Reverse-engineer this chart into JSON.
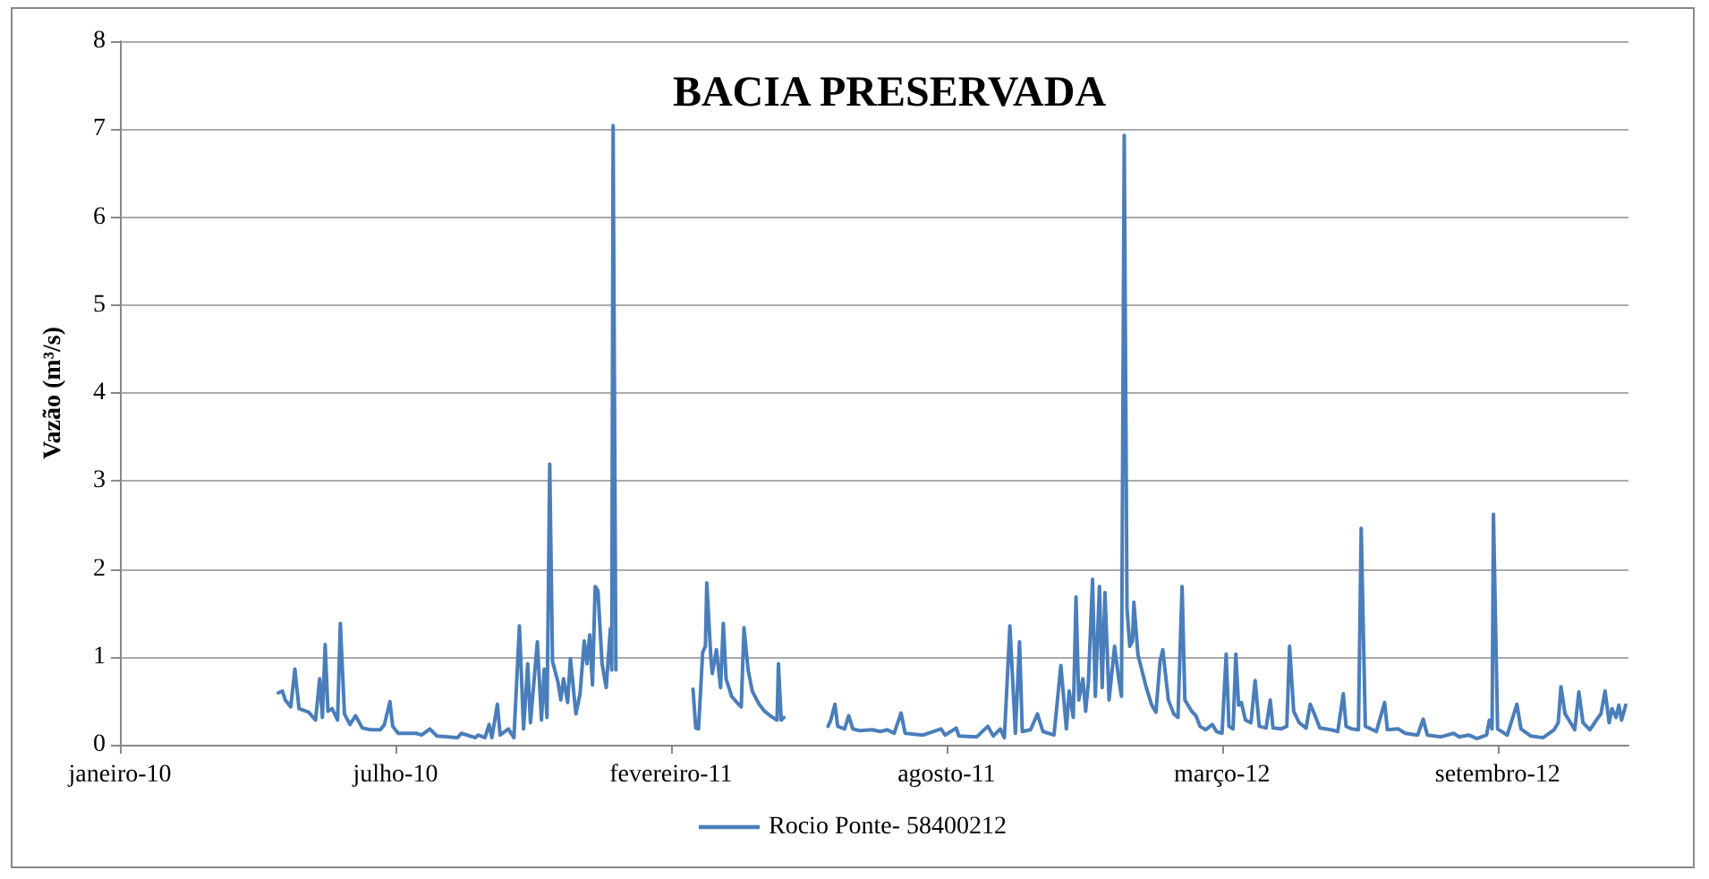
{
  "chart_data": {
    "type": "line",
    "title": "BACIA PRESERVADA",
    "ylabel": "Vazão (m³/s)",
    "xlim": [
      "2010-01-01",
      "2012-12-31"
    ],
    "xticks": [
      {
        "value": "2010-01-01",
        "label": "janeiro-10"
      },
      {
        "value": "2010-07-20",
        "label": "julho-10"
      },
      {
        "value": "2011-02-05",
        "label": "fevereiro-11"
      },
      {
        "value": "2011-08-24",
        "label": "agosto-11"
      },
      {
        "value": "2012-03-11",
        "label": "março-12"
      },
      {
        "value": "2012-09-27",
        "label": "setembro-12"
      }
    ],
    "ylim": [
      0,
      8
    ],
    "yticks": [
      0,
      1,
      2,
      3,
      4,
      5,
      6,
      7,
      8
    ],
    "grid": "y",
    "legend": "bottom",
    "marker": "none",
    "line_style": "solid",
    "series": [
      {
        "name": "Rocio Ponte- 58400212",
        "color": "#4a7ebb",
        "x": [
          "2010-04-26",
          "2010-04-29",
          "2010-05-01",
          "2010-05-05",
          "2010-05-08",
          "2010-05-11",
          "2010-05-18",
          "2010-05-23",
          "2010-05-26",
          "2010-05-28",
          "2010-05-30",
          "2010-06-01",
          "2010-06-04",
          "2010-06-08",
          "2010-06-10",
          "2010-06-13",
          "2010-06-17",
          "2010-06-21",
          "2010-06-26",
          "2010-07-02",
          "2010-07-09",
          "2010-07-12",
          "2010-07-16",
          "2010-07-18",
          "2010-07-22",
          "2010-08-04",
          "2010-08-08",
          "2010-08-14",
          "2010-08-19",
          "2010-09-03",
          "2010-09-06",
          "2010-09-16",
          "2010-09-18",
          "2010-09-23",
          "2010-09-26",
          "2010-09-28",
          "2010-10-02",
          "2010-10-04",
          "2010-10-10",
          "2010-10-14",
          "2010-10-18",
          "2010-10-21",
          "2010-10-24",
          "2010-10-26",
          "2010-10-31",
          "2010-11-03",
          "2010-11-05",
          "2010-11-07",
          "2010-11-09",
          "2010-11-11",
          "2010-11-15",
          "2010-11-17",
          "2010-11-19",
          "2010-11-22",
          "2010-11-24",
          "2010-11-28",
          "2010-12-01",
          "2010-12-04",
          "2010-12-06",
          "2010-12-08",
          "2010-12-10",
          "2010-12-12",
          "2010-12-14",
          "2010-12-17",
          "2010-12-20",
          "2010-12-23",
          "2010-12-24",
          "2010-12-25",
          "2010-12-27",
          "2011-01-20",
          "2011-02-21",
          "2011-02-23",
          "2011-02-25",
          "2011-02-28",
          "2011-03-02",
          "2011-03-03",
          "2011-03-06",
          "2011-03-07",
          "2011-03-10",
          "2011-03-13",
          "2011-03-15",
          "2011-03-17",
          "2011-03-21",
          "2011-03-26",
          "2011-03-28",
          "2011-03-30",
          "2011-04-02",
          "2011-04-05",
          "2011-04-10",
          "2011-04-14",
          "2011-04-18",
          "2011-04-23",
          "2011-04-24",
          "2011-04-26",
          "2011-04-28",
          "2011-05-14",
          "2011-05-30",
          "2011-06-01",
          "2011-06-04",
          "2011-06-06",
          "2011-06-11",
          "2011-06-14",
          "2011-06-17",
          "2011-06-22",
          "2011-07-01",
          "2011-07-07",
          "2011-07-12",
          "2011-07-17",
          "2011-07-22",
          "2011-07-25",
          "2011-08-07",
          "2011-08-20",
          "2011-08-23",
          "2011-08-31",
          "2011-09-02",
          "2011-09-15",
          "2011-09-23",
          "2011-09-27",
          "2011-10-02",
          "2011-10-05",
          "2011-10-09",
          "2011-10-13",
          "2011-10-16",
          "2011-10-18",
          "2011-10-24",
          "2011-10-29",
          "2011-11-02",
          "2011-11-10",
          "2011-11-15",
          "2011-11-19",
          "2011-11-21",
          "2011-11-24",
          "2011-11-26",
          "2011-11-28",
          "2011-12-01",
          "2011-12-03",
          "2011-12-05",
          "2011-12-08",
          "2011-12-10",
          "2011-12-13",
          "2011-12-15",
          "2011-12-17",
          "2011-12-20",
          "2011-12-24",
          "2011-12-27",
          "2011-12-29",
          "2011-12-31",
          "2012-01-02",
          "2012-01-04",
          "2012-01-06",
          "2012-01-07",
          "2012-01-10",
          "2012-01-16",
          "2012-01-20",
          "2012-01-23",
          "2012-01-26",
          "2012-01-28",
          "2012-02-01",
          "2012-02-05",
          "2012-02-08",
          "2012-02-11",
          "2012-02-13",
          "2012-02-18",
          "2012-02-21",
          "2012-02-24",
          "2012-02-28",
          "2012-03-04",
          "2012-03-07",
          "2012-03-11",
          "2012-03-14",
          "2012-03-16",
          "2012-03-19",
          "2012-03-21",
          "2012-03-23",
          "2012-03-25",
          "2012-03-28",
          "2012-04-01",
          "2012-04-04",
          "2012-04-07",
          "2012-04-12",
          "2012-04-15",
          "2012-04-17",
          "2012-04-23",
          "2012-04-27",
          "2012-04-29",
          "2012-05-02",
          "2012-05-06",
          "2012-05-11",
          "2012-05-14",
          "2012-05-17",
          "2012-05-21",
          "2012-05-29",
          "2012-06-03",
          "2012-06-07",
          "2012-06-09",
          "2012-06-13",
          "2012-06-18",
          "2012-06-20",
          "2012-06-23",
          "2012-07-01",
          "2012-07-07",
          "2012-07-09",
          "2012-07-17",
          "2012-07-22",
          "2012-07-31",
          "2012-08-04",
          "2012-08-07",
          "2012-08-17",
          "2012-08-26",
          "2012-08-30",
          "2012-09-06",
          "2012-09-12",
          "2012-09-19",
          "2012-09-21",
          "2012-09-23",
          "2012-09-24",
          "2012-09-27",
          "2012-10-04",
          "2012-10-11",
          "2012-10-14",
          "2012-10-21",
          "2012-10-30",
          "2012-11-07",
          "2012-11-10",
          "2012-11-12",
          "2012-11-15",
          "2012-11-19",
          "2012-11-22",
          "2012-11-25",
          "2012-11-28",
          "2012-12-03",
          "2012-12-09",
          "2012-12-11",
          "2012-12-14",
          "2012-12-17",
          "2012-12-19",
          "2012-12-22",
          "2012-12-24",
          "2012-12-26",
          "2012-12-29"
        ],
        "values": [
          0.59,
          0.61,
          0.51,
          0.43,
          0.86,
          0.41,
          0.37,
          0.28,
          0.75,
          0.31,
          1.14,
          0.38,
          0.41,
          0.28,
          1.38,
          0.35,
          0.23,
          0.33,
          0.19,
          0.17,
          0.17,
          0.23,
          0.49,
          0.21,
          0.13,
          0.13,
          0.11,
          0.18,
          0.1,
          0.08,
          0.13,
          0.08,
          0.11,
          0.08,
          0.23,
          0.08,
          0.46,
          0.11,
          0.18,
          0.08,
          1.35,
          0.18,
          0.92,
          0.25,
          1.17,
          0.28,
          0.86,
          0.31,
          3.19,
          0.95,
          0.71,
          0.51,
          0.75,
          0.48,
          0.98,
          0.35,
          0.58,
          1.18,
          0.92,
          1.25,
          0.68,
          1.8,
          1.75,
          0.92,
          0.65,
          1.32,
          0.85,
          7.04,
          0.85,
          null,
          0.63,
          0.19,
          0.18,
          1.05,
          1.12,
          1.84,
          0.98,
          0.81,
          1.08,
          0.65,
          1.38,
          0.75,
          0.55,
          0.46,
          0.43,
          1.33,
          0.85,
          0.61,
          0.46,
          0.38,
          0.33,
          0.28,
          0.92,
          0.28,
          0.31,
          null,
          0.21,
          0.28,
          0.46,
          0.21,
          0.18,
          0.33,
          0.18,
          0.16,
          0.17,
          0.15,
          0.17,
          0.13,
          0.36,
          0.13,
          0.11,
          0.18,
          0.11,
          0.19,
          0.1,
          0.09,
          0.21,
          0.1,
          0.18,
          0.08,
          1.35,
          0.13,
          1.17,
          0.15,
          0.17,
          0.35,
          0.15,
          0.11,
          0.9,
          0.18,
          0.61,
          0.31,
          1.68,
          0.51,
          0.75,
          0.38,
          0.71,
          1.88,
          0.55,
          1.8,
          0.65,
          1.73,
          0.51,
          1.12,
          0.75,
          0.55,
          6.93,
          1.55,
          1.12,
          1.18,
          1.62,
          1.02,
          0.65,
          0.45,
          0.37,
          0.95,
          1.08,
          0.51,
          0.35,
          0.31,
          1.8,
          0.51,
          0.38,
          0.33,
          0.21,
          0.17,
          0.23,
          0.15,
          0.13,
          1.03,
          0.21,
          0.18,
          1.03,
          0.45,
          0.48,
          0.28,
          0.25,
          0.73,
          0.21,
          0.19,
          0.51,
          0.19,
          0.18,
          0.21,
          1.12,
          0.38,
          0.25,
          0.19,
          0.46,
          0.35,
          0.19,
          0.17,
          0.15,
          0.58,
          0.21,
          0.18,
          0.17,
          2.46,
          0.21,
          0.15,
          0.48,
          0.17,
          0.18,
          0.13,
          0.11,
          0.29,
          0.11,
          0.09,
          0.13,
          0.09,
          0.11,
          0.07,
          0.11,
          0.28,
          0.18,
          2.62,
          0.18,
          0.11,
          0.46,
          0.18,
          0.1,
          0.08,
          0.17,
          0.25,
          0.66,
          0.35,
          0.25,
          0.17,
          0.6,
          0.25,
          0.17,
          0.31,
          0.35,
          0.61,
          0.25,
          0.41,
          0.31,
          0.45,
          0.28,
          0.45
        ]
      }
    ]
  }
}
